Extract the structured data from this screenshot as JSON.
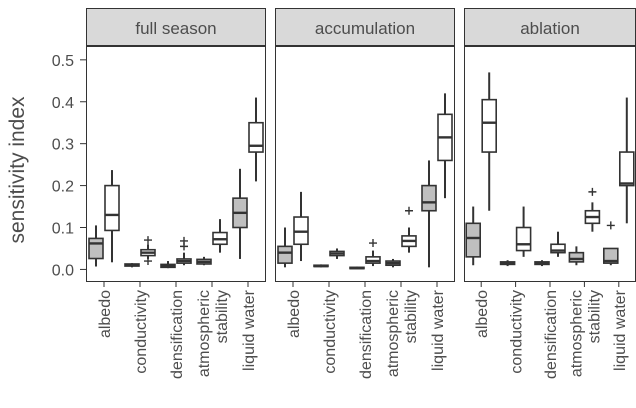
{
  "chart_data": {
    "type": "boxplot",
    "ylabel": "sensitivity index",
    "ylim": [
      -0.03,
      0.533
    ],
    "yticks": [
      {
        "value": 0,
        "label": "0.0"
      },
      {
        "value": 0.1,
        "label": "0.1"
      },
      {
        "value": 0.2,
        "label": "0.2"
      },
      {
        "value": 0.3,
        "label": "0.3"
      },
      {
        "value": 0.4,
        "label": "0.4"
      },
      {
        "value": 0.5,
        "label": "0.5"
      }
    ],
    "grid": false,
    "categories": [
      "albedo",
      "conductivity",
      "densification",
      "atmospheric\nstability",
      "liquid water"
    ],
    "panels": [
      {
        "title": "full season",
        "series": [
          {
            "color": "#bfbfbf",
            "min": [
              0.007,
              0.005,
              0.003,
              0.01,
              0.025
            ],
            "q1": [
              0.026,
              0.008,
              0.005,
              0.013,
              0.1
            ],
            "median": [
              0.062,
              0.01,
              0.008,
              0.018,
              0.135
            ],
            "q3": [
              0.074,
              0.013,
              0.012,
              0.024,
              0.17
            ],
            "max": [
              0.105,
              0.015,
              0.02,
              0.03,
              0.24
            ],
            "outliers": [
              [],
              [],
              [],
              [],
              []
            ]
          },
          {
            "color": "#ffffff",
            "min": [
              0.017,
              0.025,
              0.01,
              0.04,
              0.21
            ],
            "q1": [
              0.093,
              0.033,
              0.015,
              0.06,
              0.28
            ],
            "median": [
              0.13,
              0.04,
              0.02,
              0.072,
              0.295
            ],
            "q3": [
              0.2,
              0.047,
              0.025,
              0.088,
              0.35
            ],
            "max": [
              0.237,
              0.06,
              0.04,
              0.12,
              0.41
            ],
            "outliers": [
              [],
              [
                0.07,
                0.02
              ],
              [
                0.055,
                0.068
              ],
              [],
              []
            ]
          }
        ]
      },
      {
        "title": "accumulation",
        "series": [
          {
            "color": "#bfbfbf",
            "min": [
              0.005,
              0.005,
              0.001,
              0.005,
              0.005
            ],
            "q1": [
              0.015,
              0.007,
              0.002,
              0.01,
              0.14
            ],
            "median": [
              0.04,
              0.008,
              0.003,
              0.015,
              0.16
            ],
            "q3": [
              0.055,
              0.01,
              0.005,
              0.02,
              0.2
            ],
            "max": [
              0.1,
              0.012,
              0.007,
              0.025,
              0.26
            ],
            "outliers": [
              [],
              [],
              [],
              [],
              []
            ]
          },
          {
            "color": "#ffffff",
            "min": [
              0.02,
              0.025,
              0.008,
              0.04,
              0.17
            ],
            "q1": [
              0.06,
              0.033,
              0.015,
              0.055,
              0.26
            ],
            "median": [
              0.09,
              0.038,
              0.02,
              0.068,
              0.315
            ],
            "q3": [
              0.125,
              0.043,
              0.03,
              0.08,
              0.37
            ],
            "max": [
              0.185,
              0.05,
              0.045,
              0.1,
              0.42
            ],
            "outliers": [
              [],
              [],
              [
                0.063
              ],
              [
                0.14
              ],
              []
            ]
          }
        ]
      },
      {
        "title": "ablation",
        "series": [
          {
            "color": "#bfbfbf",
            "min": [
              0.01,
              0.008,
              0.008,
              0.01,
              0.01
            ],
            "q1": [
              0.03,
              0.012,
              0.012,
              0.018,
              0.015
            ],
            "median": [
              0.075,
              0.015,
              0.015,
              0.025,
              0.02
            ],
            "q3": [
              0.11,
              0.018,
              0.018,
              0.04,
              0.05
            ],
            "max": [
              0.15,
              0.022,
              0.022,
              0.055,
              0.05
            ],
            "outliers": [
              [],
              [],
              [],
              [],
              [
                0.105
              ]
            ]
          },
          {
            "color": "#ffffff",
            "min": [
              0.14,
              0.03,
              0.03,
              0.09,
              0.11
            ],
            "q1": [
              0.28,
              0.045,
              0.04,
              0.11,
              0.2
            ],
            "median": [
              0.35,
              0.06,
              0.045,
              0.125,
              0.205
            ],
            "q3": [
              0.405,
              0.1,
              0.06,
              0.14,
              0.28
            ],
            "max": [
              0.47,
              0.15,
              0.09,
              0.16,
              0.41
            ],
            "outliers": [
              [],
              [],
              [],
              [
                0.185
              ],
              []
            ]
          }
        ]
      }
    ]
  }
}
